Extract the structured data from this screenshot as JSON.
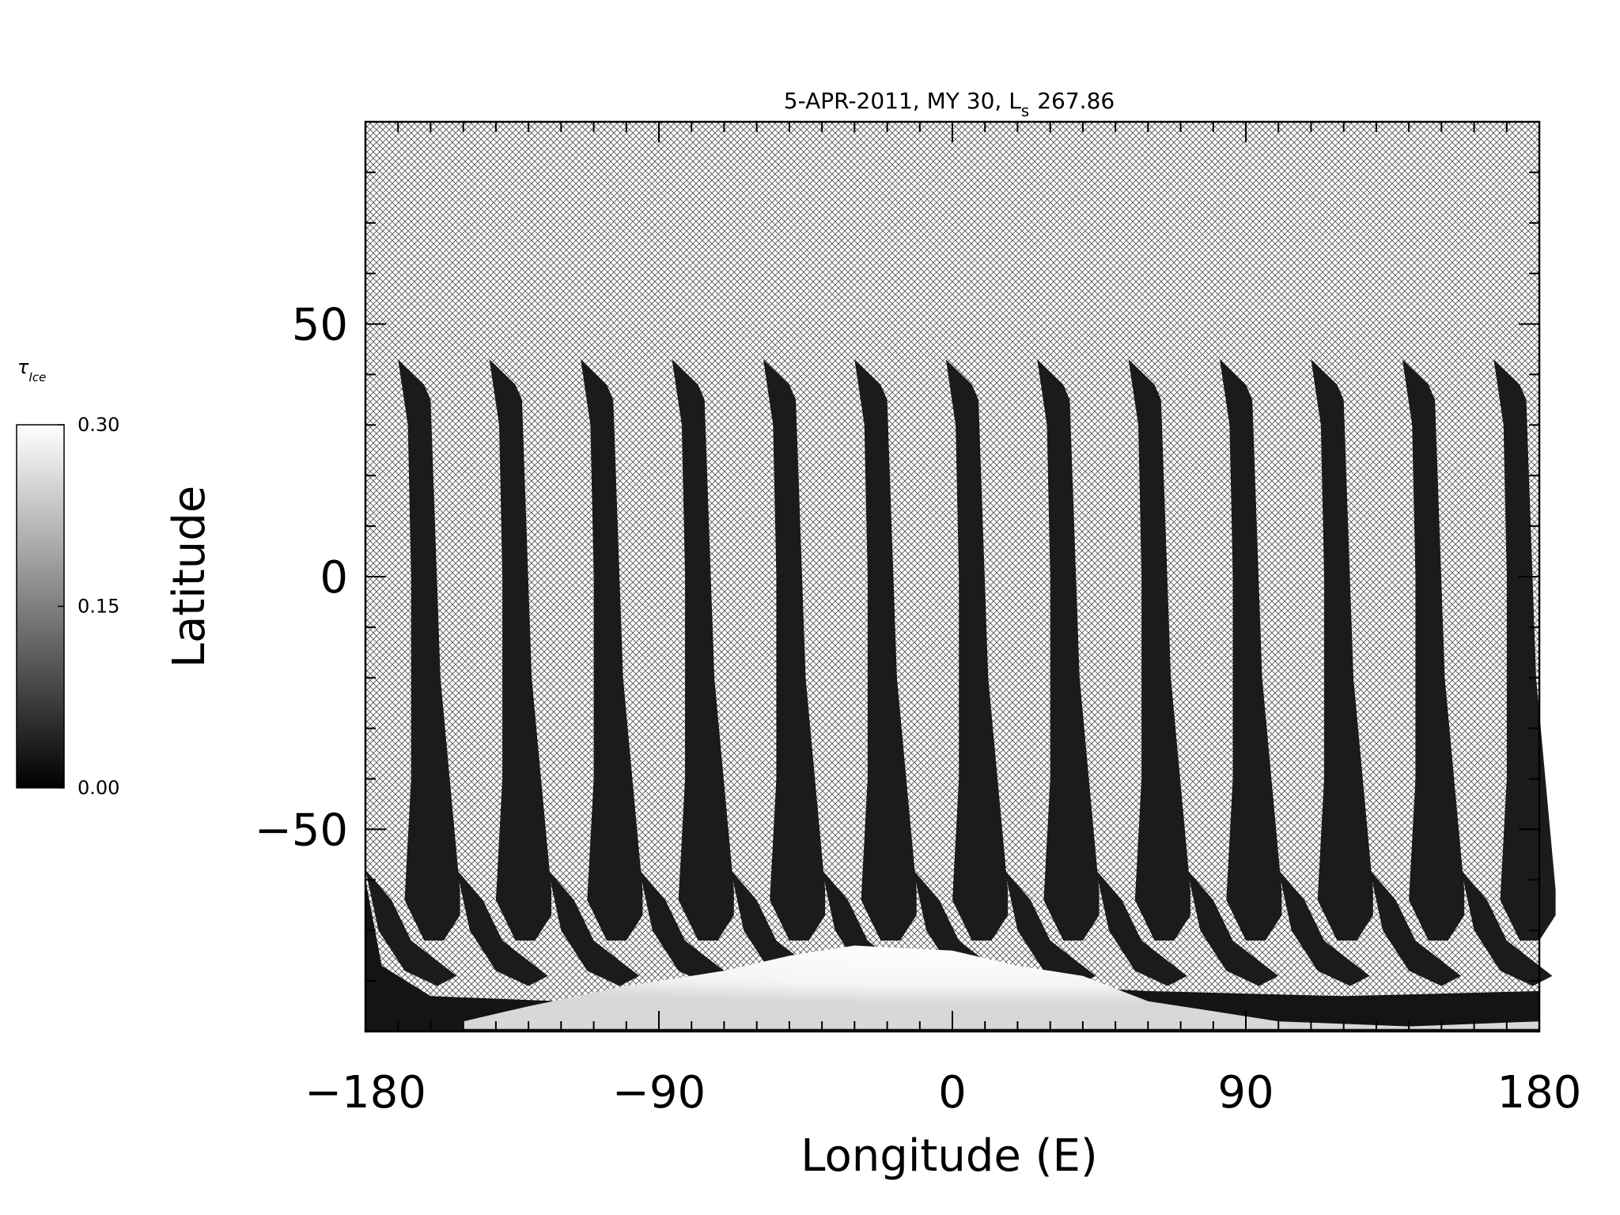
{
  "chart_data": {
    "type": "heatmap",
    "title": "5-APR-2011, MY 30,  L",
    "title_sub": "s",
    "title_value": "267.86",
    "xlabel": "Longitude (E)",
    "ylabel": "Latitude",
    "xlim": [
      -180,
      180
    ],
    "ylim": [
      -90,
      90
    ],
    "xticks": [
      -180,
      -90,
      0,
      90,
      180
    ],
    "xtick_labels": [
      "−180",
      "−90",
      "0",
      "90",
      "180"
    ],
    "yticks": [
      -50,
      0,
      50
    ],
    "ytick_labels": [
      "−50",
      "0",
      "50"
    ],
    "x_minor_step": 10,
    "y_minor_step": 10,
    "colormap": "grayscale (black to white)",
    "no_data_fill": "crosshatch",
    "colorbar": {
      "label_symbol": "τ",
      "label_sub": "Ice",
      "range": [
        0.0,
        0.3
      ],
      "ticks": [
        0.0,
        0.15,
        0.3
      ],
      "tick_labels": [
        "0.00",
        "0.15",
        "0.30"
      ]
    },
    "swaths": {
      "count": 13,
      "top_latitude": 43,
      "approx_value": 0.01,
      "top_west_longitudes": [
        -170,
        -142,
        -114,
        -86,
        -58,
        -30,
        -2,
        26,
        54,
        82,
        110,
        138,
        166
      ]
    },
    "south_polar_cap": {
      "approx_value": 0.3,
      "latitude_edge": -73
    }
  }
}
